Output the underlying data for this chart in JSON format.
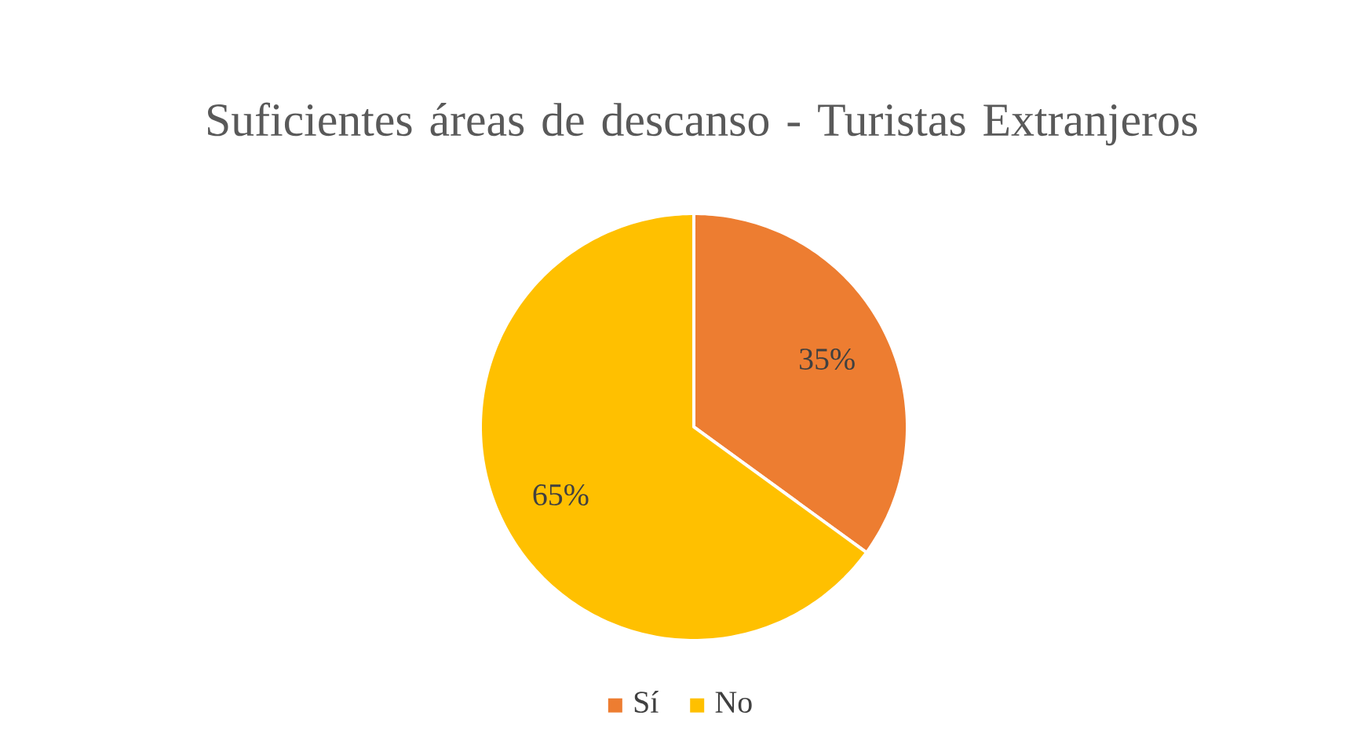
{
  "chart_data": {
    "type": "pie",
    "title": "Suficientes áreas de descanso - Turistas Extranjeros",
    "categories": [
      "Sí",
      "No"
    ],
    "values": [
      35,
      65
    ],
    "colors": [
      "#ed7d31",
      "#ffc000"
    ],
    "value_labels": [
      "35%",
      "65%"
    ],
    "legend": "bottom"
  }
}
